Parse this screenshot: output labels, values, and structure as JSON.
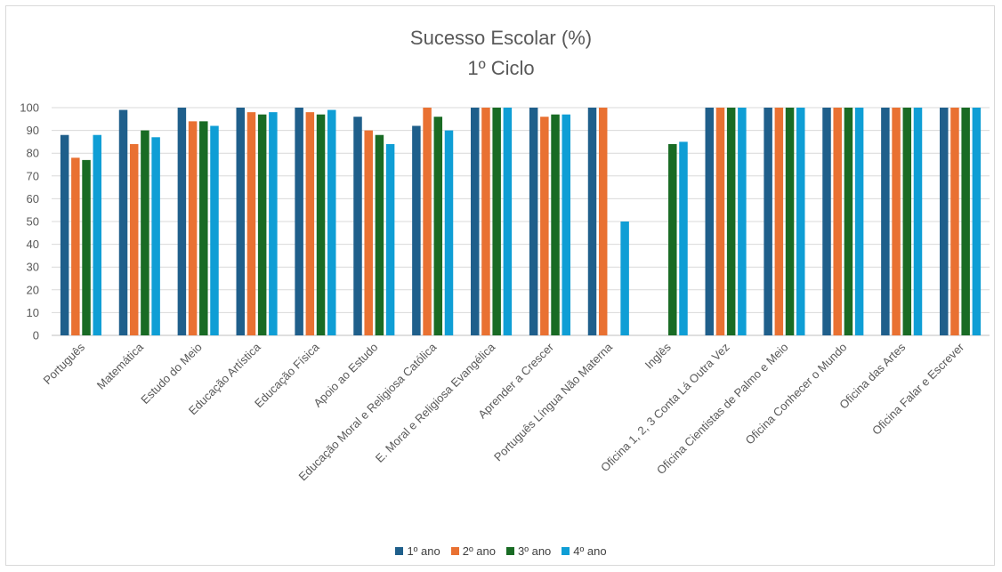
{
  "chart_data": {
    "type": "bar",
    "title": "Sucesso Escolar (%)",
    "subtitle": "1º Ciclo",
    "ylim": [
      0,
      100
    ],
    "yticks": [
      0,
      10,
      20,
      30,
      40,
      50,
      60,
      70,
      80,
      90,
      100
    ],
    "grid": "horizontal",
    "legend_position": "bottom",
    "categories": [
      "Português",
      "Matemática",
      "Estudo do Meio",
      "Educação Artística",
      "Educação Física",
      "Apoio ao Estudo",
      "Educação Moral e Religiosa Católica",
      "E. Moral e Religiosa Evangélica",
      "Aprender a Crescer",
      "Português Língua Não Materna",
      "Inglês",
      "Oficina 1, 2, 3 Conta Lá Outra Vez",
      "Oficina Cientistas de Palmo e Meio",
      "Oficina Conhecer o Mundo",
      "Oficina das Artes",
      "Oficina Falar e Escrever"
    ],
    "series": [
      {
        "name": "1º ano",
        "color": "#1f5f8b",
        "values": [
          88,
          99,
          100,
          100,
          100,
          96,
          92,
          100,
          100,
          100,
          null,
          100,
          100,
          100,
          100,
          100
        ]
      },
      {
        "name": "2º ano",
        "color": "#e97132",
        "values": [
          78,
          84,
          94,
          98,
          98,
          90,
          100,
          100,
          96,
          100,
          null,
          100,
          100,
          100,
          100,
          100
        ]
      },
      {
        "name": "3º ano",
        "color": "#196b24",
        "values": [
          77,
          90,
          94,
          97,
          97,
          88,
          96,
          100,
          97,
          null,
          84,
          100,
          100,
          100,
          100,
          100
        ]
      },
      {
        "name": "4º ano",
        "color": "#0f9ed5",
        "values": [
          88,
          87,
          92,
          98,
          99,
          84,
          90,
          100,
          97,
          50,
          85,
          100,
          100,
          100,
          100,
          100
        ]
      }
    ]
  }
}
